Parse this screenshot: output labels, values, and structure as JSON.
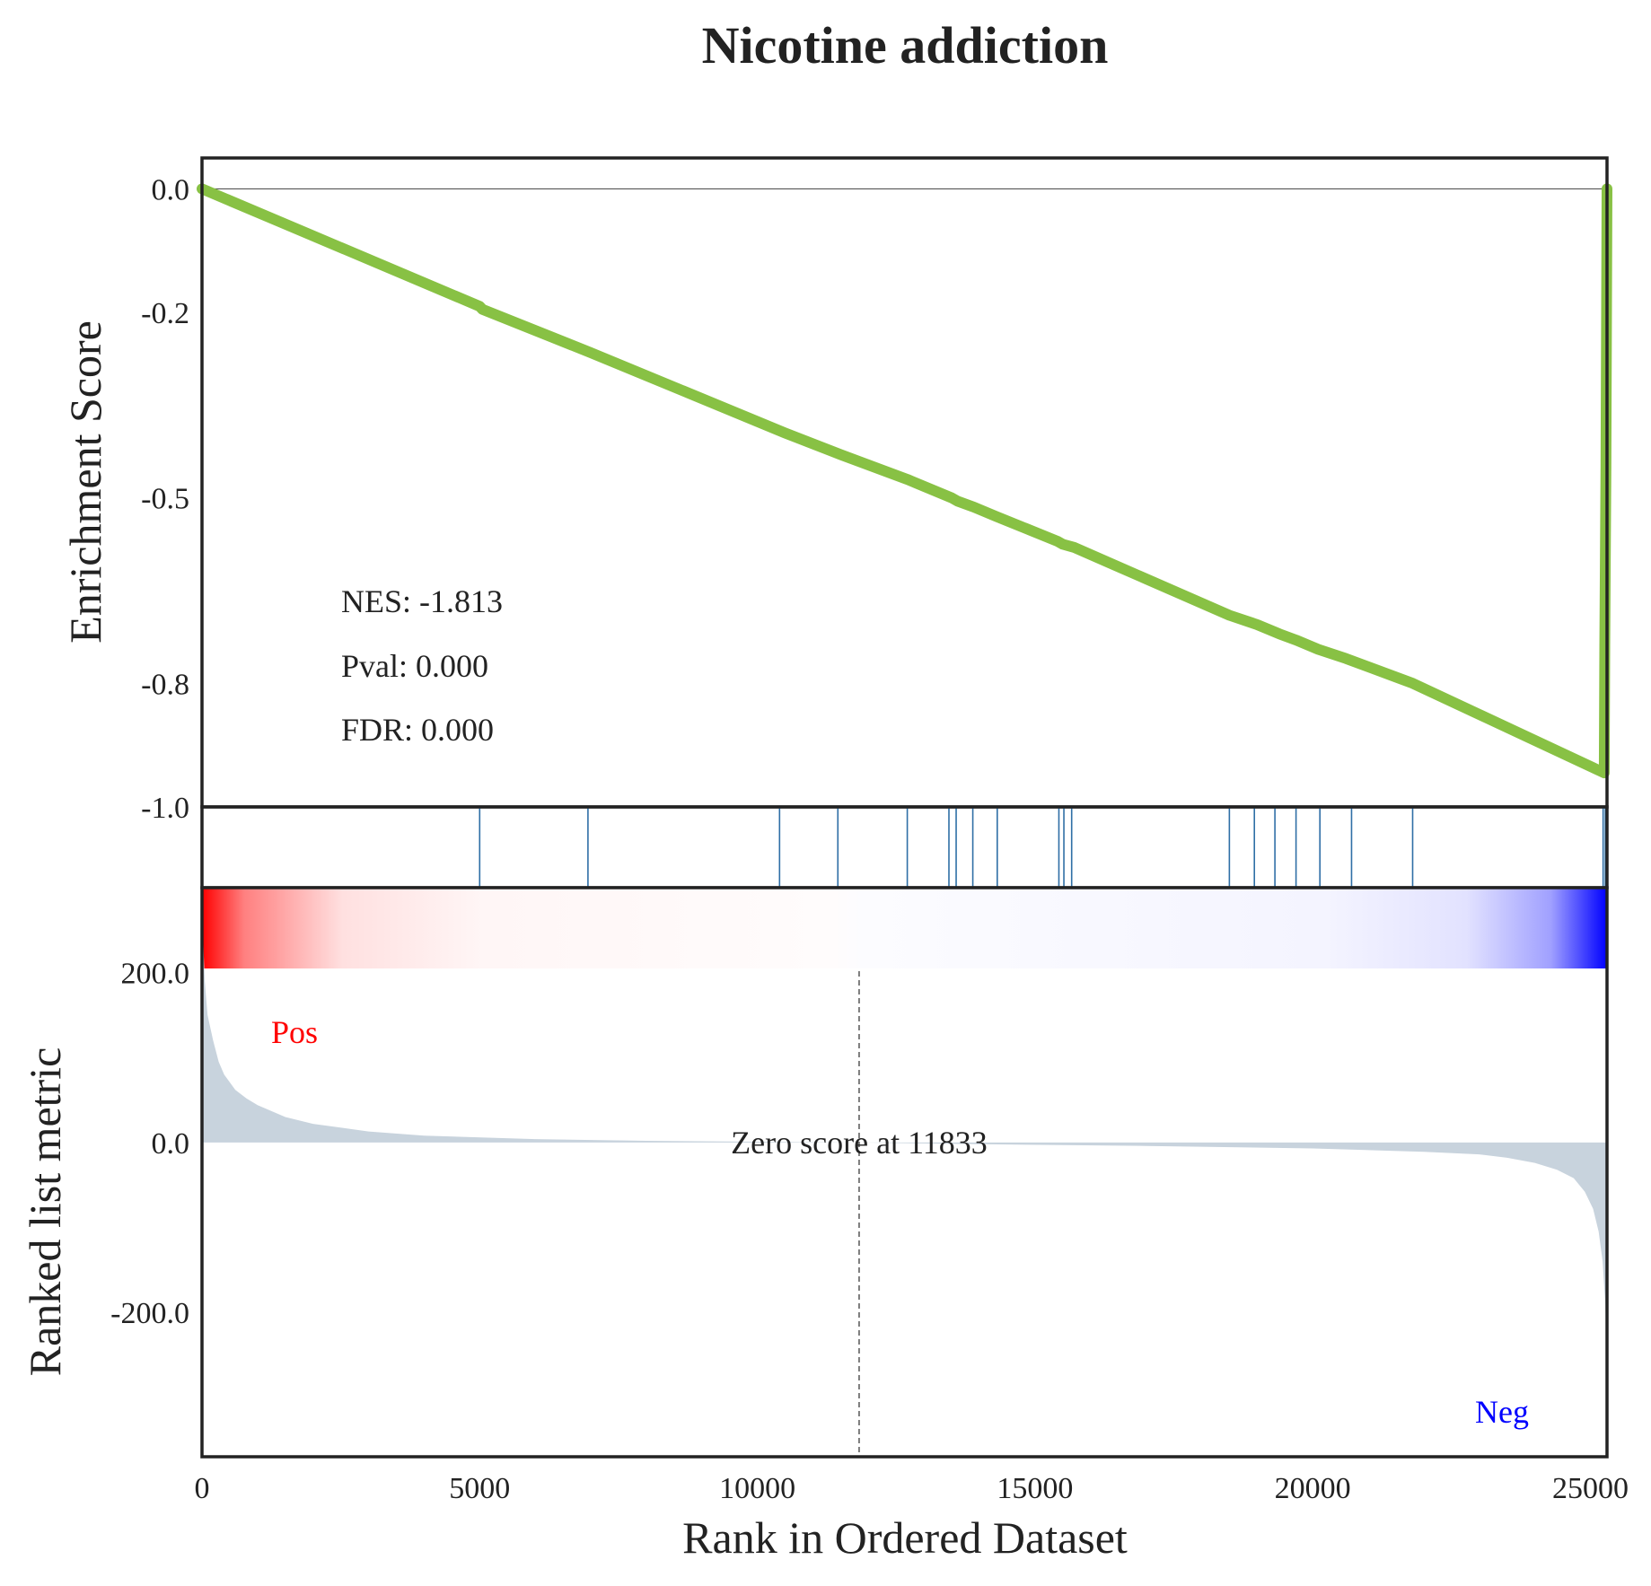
{
  "chart_data": {
    "type": "line",
    "title": "Nicotine addiction",
    "xlabel": "Rank in Ordered Dataset",
    "xlim": [
      0,
      25300
    ],
    "x_ticks": [
      "0",
      "5000",
      "10000",
      "15000",
      "20000",
      "25000"
    ],
    "panels": {
      "enrichment": {
        "ylabel": "Enrichment Score",
        "ylim": [
          -1.0,
          0.05
        ],
        "y_ticks": [
          "0.0",
          "-0.2",
          "-0.5",
          "-0.8",
          "-1.0"
        ],
        "line_color": "#88c144",
        "zero_line": true,
        "series": [
          {
            "x": [
              0,
              5000,
              5050,
              7000,
              10500,
              11500,
              12700,
              13500,
              13600,
              13900,
              14300,
              15400,
              15500,
              15700,
              18500,
              19000,
              19400,
              19700,
              20100,
              20600,
              21800,
              25250,
              25260,
              25280,
              25300
            ],
            "y": [
              0.0,
              -0.19,
              -0.195,
              -0.265,
              -0.395,
              -0.43,
              -0.47,
              -0.5,
              -0.505,
              -0.515,
              -0.53,
              -0.57,
              -0.575,
              -0.58,
              -0.69,
              -0.705,
              -0.72,
              -0.73,
              -0.745,
              -0.76,
              -0.8,
              -0.945,
              -0.74,
              -0.45,
              0.0
            ]
          }
        ]
      },
      "hits": {
        "color": "#2f6fa6",
        "positions": [
          5000,
          6950,
          10400,
          11450,
          12700,
          13450,
          13580,
          13880,
          14320,
          15430,
          15520,
          15660,
          18500,
          18950,
          19320,
          19700,
          20130,
          20700,
          21800,
          25230,
          25270,
          25290
        ]
      },
      "heatmap": {
        "colormap": "bwr",
        "pos_color": "#ff0000",
        "neg_color": "#0000ff"
      },
      "ranked_metric": {
        "ylabel": "Ranked list metric",
        "ylim": [
          -370,
          300
        ],
        "y_ticks": [
          "200.0",
          "0.0",
          "-200.0"
        ],
        "fill_color": "#c8d3dd",
        "x": [
          0,
          20,
          50,
          100,
          200,
          300,
          400,
          600,
          800,
          1000,
          1500,
          2000,
          3000,
          4000,
          6000,
          8000,
          11833,
          14000,
          17000,
          20000,
          22000,
          23000,
          23500,
          24000,
          24400,
          24700,
          24900,
          25050,
          25150,
          25220,
          25270,
          25300
        ],
        "y": [
          290,
          240,
          190,
          150,
          120,
          95,
          80,
          62,
          52,
          44,
          30,
          22,
          13,
          8,
          4,
          2,
          0,
          -2,
          -4,
          -7,
          -11,
          -14,
          -18,
          -24,
          -32,
          -42,
          -58,
          -78,
          -105,
          -140,
          -190,
          -260
        ],
        "zero_line_x": 11833,
        "zero_text": "Zero score at 11833",
        "pos_label": "Pos",
        "neg_label": "Neg"
      }
    },
    "stats": {
      "nes": "NES: -1.813",
      "pval": "Pval: 0.000",
      "fdr": "FDR: 0.000"
    }
  }
}
